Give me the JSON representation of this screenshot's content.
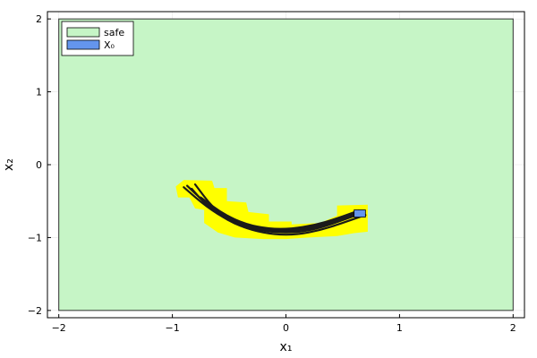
{
  "chart_data": {
    "type": "area",
    "xlabel": "x₁",
    "ylabel": "x₂",
    "xlim": [
      -2.1,
      2.1
    ],
    "ylim": [
      -2.1,
      2.1
    ],
    "x_ticks": [
      {
        "value": -2,
        "label": "−2"
      },
      {
        "value": -1,
        "label": "−1"
      },
      {
        "value": 0,
        "label": "0"
      },
      {
        "value": 1,
        "label": "1"
      },
      {
        "value": 2,
        "label": "2"
      }
    ],
    "y_ticks": [
      {
        "value": -2,
        "label": "−2"
      },
      {
        "value": -1,
        "label": "−1"
      },
      {
        "value": 0,
        "label": "0"
      },
      {
        "value": 1,
        "label": "1"
      },
      {
        "value": 2,
        "label": "2"
      }
    ],
    "grid": true,
    "legend_position": "top-left",
    "legend": [
      {
        "name": "safe",
        "color": "#c6f5c6"
      },
      {
        "name": "X₀",
        "color": "#6495ed"
      }
    ],
    "regions": {
      "safe": {
        "x": [
          -2,
          2
        ],
        "y": [
          -2,
          2
        ],
        "color": "#c6f5c6",
        "edge": "#2f2f2f"
      },
      "initial_set": {
        "x": [
          0.6,
          0.7
        ],
        "y": [
          -0.72,
          -0.62
        ],
        "color": "#6495ed"
      },
      "reach_set": {
        "color": "#ffff00",
        "polygon": [
          [
            -0.9,
            -0.21
          ],
          [
            -0.65,
            -0.22
          ],
          [
            -0.63,
            -0.32
          ],
          [
            -0.52,
            -0.32
          ],
          [
            -0.52,
            -0.5
          ],
          [
            -0.35,
            -0.52
          ],
          [
            -0.33,
            -0.65
          ],
          [
            -0.15,
            -0.68
          ],
          [
            -0.15,
            -0.78
          ],
          [
            0.05,
            -0.78
          ],
          [
            0.05,
            -0.82
          ],
          [
            0.3,
            -0.8
          ],
          [
            0.45,
            -0.7
          ],
          [
            0.45,
            -0.56
          ],
          [
            0.72,
            -0.55
          ],
          [
            0.72,
            -0.92
          ],
          [
            0.6,
            -0.94
          ],
          [
            0.45,
            -0.98
          ],
          [
            0.2,
            -1.0
          ],
          [
            0.0,
            -1.02
          ],
          [
            -0.2,
            -1.02
          ],
          [
            -0.45,
            -1.0
          ],
          [
            -0.6,
            -0.93
          ],
          [
            -0.72,
            -0.8
          ],
          [
            -0.72,
            -0.62
          ],
          [
            -0.8,
            -0.6
          ],
          [
            -0.85,
            -0.45
          ],
          [
            -0.95,
            -0.45
          ],
          [
            -0.97,
            -0.3
          ]
        ]
      }
    },
    "trajectories": [
      {
        "x": [
          0.68,
          0.5,
          0.3,
          0.1,
          -0.1,
          -0.3,
          -0.5,
          -0.7,
          -0.9
        ],
        "y": [
          -0.66,
          -0.76,
          -0.87,
          -0.93,
          -0.93,
          -0.88,
          -0.77,
          -0.58,
          -0.31
        ]
      },
      {
        "x": [
          0.66,
          0.5,
          0.3,
          0.1,
          -0.1,
          -0.3,
          -0.5,
          -0.7,
          -0.87
        ],
        "y": [
          -0.64,
          -0.73,
          -0.83,
          -0.89,
          -0.9,
          -0.86,
          -0.74,
          -0.54,
          -0.29
        ]
      },
      {
        "x": [
          0.7,
          0.5,
          0.3,
          0.1,
          -0.1,
          -0.3,
          -0.5,
          -0.7,
          -0.83
        ],
        "y": [
          -0.69,
          -0.8,
          -0.9,
          -0.96,
          -0.96,
          -0.9,
          -0.78,
          -0.56,
          -0.33
        ]
      },
      {
        "x": [
          0.64,
          0.45,
          0.25,
          0.05,
          -0.15,
          -0.35,
          -0.55,
          -0.75
        ],
        "y": [
          -0.63,
          -0.74,
          -0.83,
          -0.88,
          -0.88,
          -0.82,
          -0.68,
          -0.45
        ]
      },
      {
        "x": [
          0.66,
          0.45,
          0.25,
          0.05,
          -0.15,
          -0.35,
          -0.55,
          -0.73
        ],
        "y": [
          -0.66,
          -0.78,
          -0.87,
          -0.91,
          -0.91,
          -0.85,
          -0.72,
          -0.5
        ]
      },
      {
        "x": [
          0.69,
          0.5,
          0.3,
          0.1,
          -0.1,
          -0.3,
          -0.5,
          -0.65,
          -0.8
        ],
        "y": [
          -0.65,
          -0.74,
          -0.84,
          -0.9,
          -0.91,
          -0.87,
          -0.76,
          -0.58,
          -0.27
        ]
      }
    ]
  }
}
